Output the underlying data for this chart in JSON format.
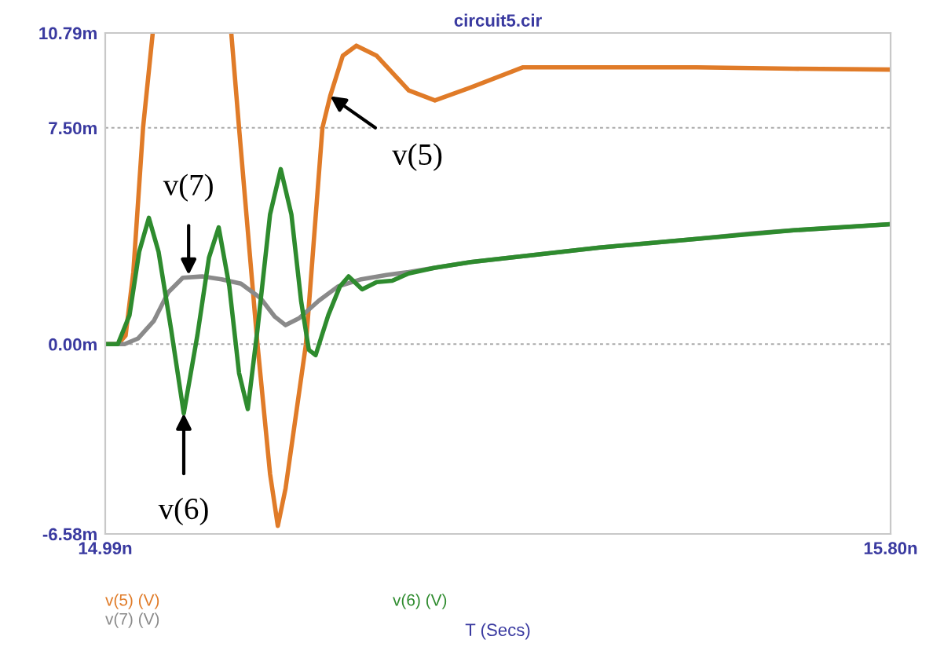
{
  "chart_data": {
    "type": "line",
    "title": "circuit5.cir",
    "xlabel": "T (Secs)",
    "xlim": [
      14.99,
      15.8
    ],
    "xticks": [
      {
        "value": 14.99,
        "label": "14.99n"
      },
      {
        "value": 15.8,
        "label": "15.80n"
      }
    ],
    "ylim": [
      -6.58,
      10.79
    ],
    "yticks": [
      {
        "value": -6.58,
        "label": "-6.58m"
      },
      {
        "value": 0,
        "label": "0.00m"
      },
      {
        "value": 7.5,
        "label": "7.50m"
      },
      {
        "value": 10.79,
        "label": "10.79m"
      }
    ],
    "grid": "y",
    "legend": "bottom",
    "line_style": "solid",
    "marker": "none",
    "series": [
      {
        "name": "v(5) (V)",
        "color": "#e07b28",
        "x": [
          14.99,
          15.003,
          15.011,
          15.019,
          15.029,
          15.039,
          15.08,
          15.12,
          15.128,
          15.147,
          15.16,
          15.168,
          15.176,
          15.197,
          15.214,
          15.222,
          15.235,
          15.249,
          15.27,
          15.303,
          15.33,
          15.367,
          15.421,
          15.5,
          15.6,
          15.7,
          15.8
        ],
        "values": [
          0,
          0,
          0.3,
          2.5,
          7.5,
          10.79,
          null,
          10.79,
          7.5,
          0,
          -4.5,
          -6.3,
          -5.0,
          0,
          7.5,
          8.6,
          10.0,
          10.35,
          10.0,
          8.8,
          8.45,
          8.9,
          9.6,
          9.6,
          9.6,
          9.55,
          9.52
        ]
      },
      {
        "name": "v(7) (V)",
        "color": "#8a8a8a",
        "x": [
          14.99,
          15.01,
          15.024,
          15.04,
          15.055,
          15.07,
          15.09,
          15.11,
          15.13,
          15.15,
          15.165,
          15.176,
          15.19,
          15.21,
          15.23,
          15.254,
          15.28,
          15.303,
          15.33,
          15.367,
          15.421,
          15.5,
          15.55,
          15.6,
          15.659,
          15.7,
          15.75,
          15.8
        ],
        "values": [
          0,
          0,
          0.2,
          0.8,
          1.8,
          2.3,
          2.35,
          2.25,
          2.1,
          1.6,
          0.95,
          0.66,
          0.9,
          1.5,
          2.0,
          2.25,
          2.4,
          2.5,
          2.65,
          2.85,
          3.05,
          3.35,
          3.5,
          3.65,
          3.85,
          3.95,
          4.05,
          4.16
        ]
      },
      {
        "name": "v(6) (V)",
        "color": "#2e8b2e",
        "x": [
          14.99,
          15.003,
          15.015,
          15.025,
          15.035,
          15.045,
          15.058,
          15.071,
          15.085,
          15.097,
          15.107,
          15.118,
          15.128,
          15.137,
          15.147,
          15.16,
          15.171,
          15.182,
          15.192,
          15.2,
          15.207,
          15.22,
          15.232,
          15.241,
          15.255,
          15.27,
          15.286,
          15.303,
          15.33,
          15.367,
          15.421,
          15.5,
          15.6,
          15.7,
          15.8
        ],
        "values": [
          0,
          0,
          1.0,
          3.2,
          4.38,
          3.2,
          0.5,
          -2.4,
          0.3,
          3.0,
          4.05,
          2.0,
          -1.0,
          -2.25,
          0.5,
          4.5,
          6.07,
          4.5,
          1.5,
          -0.2,
          -0.38,
          1.0,
          2.0,
          2.35,
          1.9,
          2.15,
          2.2,
          2.45,
          2.65,
          2.85,
          3.05,
          3.35,
          3.65,
          3.95,
          4.16
        ]
      }
    ],
    "annotations": [
      {
        "text": "v(5)",
        "x": 15.222,
        "y": 8.6
      },
      {
        "text": "v(7)",
        "x": 15.076,
        "y": 2.4
      },
      {
        "text": "v(6)",
        "x": 15.071,
        "y": -2.4
      }
    ]
  }
}
